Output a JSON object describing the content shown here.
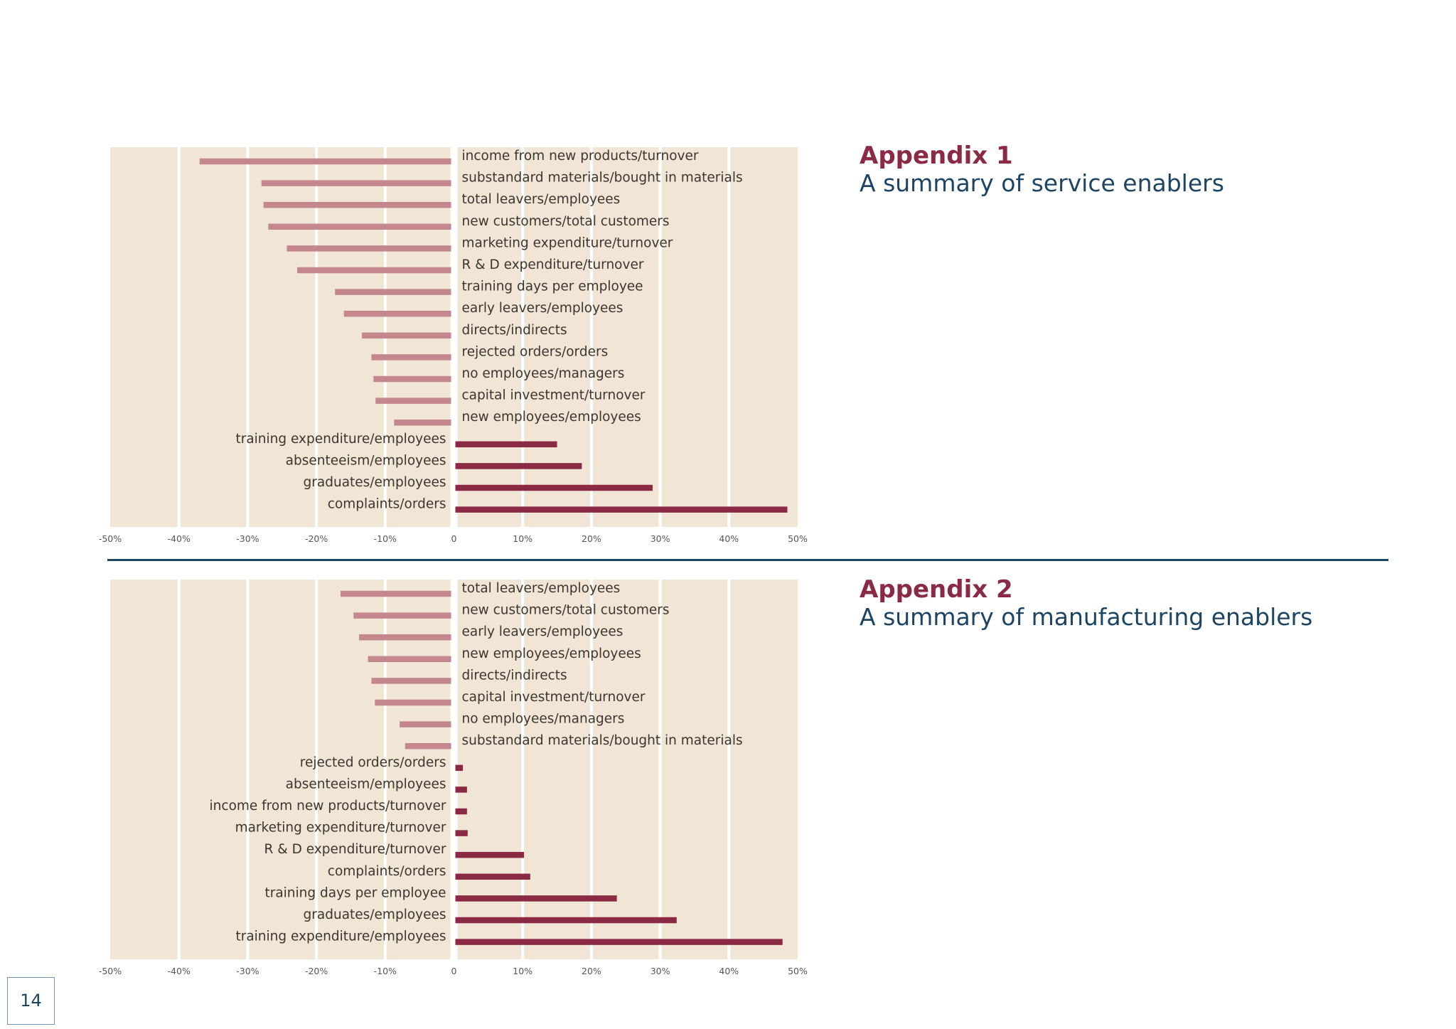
{
  "appendix1": {
    "number": "Appendix 1",
    "subtitle": "A summary of service enablers"
  },
  "appendix2": {
    "number": "Appendix 2",
    "subtitle": "A summary of manufacturing enablers"
  },
  "page_number": "14",
  "colors": {
    "plot_background": "#f1e6d6",
    "gridline": "#ffffff",
    "negative_bar": "#c4878d",
    "positive_bar": "#8b2a45",
    "heading_number": "#8b2a45",
    "heading_subtitle": "#1d4563",
    "divider": "#1d4563"
  },
  "chart_data": [
    {
      "type": "bar",
      "orientation": "horizontal",
      "categories": [
        "income from new products/turnover",
        "substandard materials/bought in materials",
        "total leavers/employees",
        "new customers/total customers",
        "marketing expenditure/turnover",
        "R & D expenditure/turnover",
        "training days per employee",
        "early leavers/employees",
        "directs/indirects",
        "rejected orders/orders",
        "no employees/managers",
        "capital investment/turnover",
        "new employees/employees",
        "training expenditure/employees",
        "absenteeism/employees",
        "graduates/employees",
        "complaints/orders"
      ],
      "values": [
        -37,
        -28,
        -27.7,
        -27,
        -24.3,
        -22.8,
        -17.3,
        -16,
        -13.4,
        -12,
        -11.7,
        -11.4,
        -8.7,
        15,
        18.6,
        28.9,
        48.5
      ],
      "xlim": [
        -50,
        50
      ],
      "xticks": [
        "-50%",
        "-40%",
        "-30%",
        "-20%",
        "-10%",
        "0",
        "10%",
        "20%",
        "30%",
        "40%",
        "50%"
      ],
      "grid": true
    },
    {
      "type": "bar",
      "orientation": "horizontal",
      "categories": [
        "total leavers/employees",
        "new customers/total customers",
        "early leavers/employees",
        "new employees/employees",
        "directs/indirects",
        "capital investment/turnover",
        "no employees/managers",
        "substandard materials/bought in materials",
        "rejected orders/orders",
        "absenteeism/employees",
        "income from new products/turnover",
        "marketing expenditure/turnover",
        "R & D expenditure/turnover",
        "complaints/orders",
        "training days per employee",
        "graduates/employees",
        "training expenditure/employees"
      ],
      "values": [
        -16.5,
        -14.6,
        -13.8,
        -12.5,
        -12,
        -11.5,
        -7.9,
        -7.1,
        1.3,
        1.9,
        1.9,
        2,
        10.2,
        11.1,
        23.7,
        32.4,
        47.8
      ],
      "xlim": [
        -50,
        50
      ],
      "xticks": [
        "-50%",
        "-40%",
        "-30%",
        "-20%",
        "-10%",
        "0",
        "10%",
        "20%",
        "30%",
        "40%",
        "50%"
      ],
      "grid": true
    }
  ]
}
